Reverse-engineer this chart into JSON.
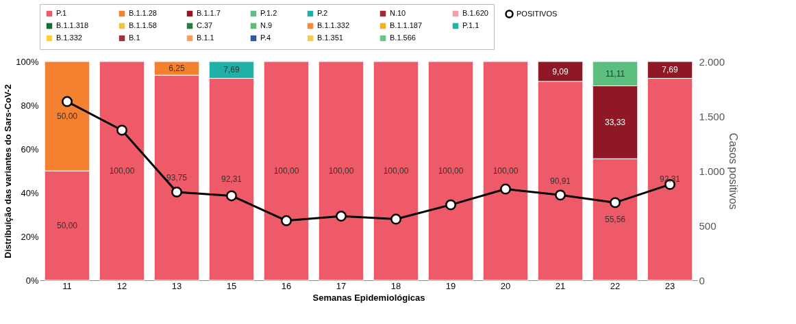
{
  "chart_data": {
    "type": "bar",
    "stacked": true,
    "xlabel": "Semanas Epidemiológicas",
    "ylabel": "Distribuição das variantes do Sars-CoV-2",
    "y2label": "Casos positivos",
    "categories": [
      "11",
      "12",
      "13",
      "15",
      "16",
      "17",
      "18",
      "19",
      "20",
      "21",
      "22",
      "23"
    ],
    "ylim": [
      0,
      100
    ],
    "yticks": [
      {
        "value": 0,
        "label": "0%"
      },
      {
        "value": 20,
        "label": "20%"
      },
      {
        "value": 40,
        "label": "40%"
      },
      {
        "value": 60,
        "label": "60%"
      },
      {
        "value": 80,
        "label": "80%"
      },
      {
        "value": 100,
        "label": "100%"
      }
    ],
    "y2lim": [
      0,
      2000
    ],
    "y2ticks": [
      0,
      500,
      {
        "value": 1000,
        "label": "1.000"
      },
      {
        "value": 1500,
        "label": "1.500"
      },
      {
        "value": 2000,
        "label": "2.000"
      }
    ],
    "grid": false,
    "legend": "top",
    "marker": "circle",
    "line_style": "solid",
    "series": [
      {
        "name": "P.1",
        "color": "#ef5a68",
        "values": [
          50,
          100,
          93.75,
          92.31,
          100,
          100,
          100,
          100,
          100,
          90.91,
          55.56,
          92.31
        ],
        "value_labels": [
          "50,00",
          "100,00",
          "93,75",
          "92,31",
          "100,00",
          "100,00",
          "100,00",
          "100,00",
          "100,00",
          "90,91",
          "55,56",
          "92,31"
        ]
      },
      {
        "name": "B.1.1.28",
        "color": "#f4812f",
        "values": [
          50,
          null,
          6.25,
          null,
          null,
          null,
          null,
          null,
          null,
          null,
          null,
          null
        ],
        "value_labels": [
          "50,00",
          null,
          "6,25",
          null,
          null,
          null,
          null,
          null,
          null,
          null,
          null,
          null
        ]
      },
      {
        "name": "B.1.1.7",
        "color": "#8f1826",
        "values": [
          null,
          null,
          null,
          null,
          null,
          null,
          null,
          null,
          null,
          9.09,
          33.33,
          7.69
        ],
        "value_labels": [
          null,
          null,
          null,
          null,
          null,
          null,
          null,
          null,
          null,
          "9,09",
          "33,33",
          "7,69"
        ]
      },
      {
        "name": "P.1.2",
        "color": "#5dbf7f",
        "values": [
          null,
          null,
          null,
          null,
          null,
          null,
          null,
          null,
          null,
          null,
          11.11,
          null
        ],
        "value_labels": [
          null,
          null,
          null,
          null,
          null,
          null,
          null,
          null,
          null,
          null,
          "11,11",
          null
        ]
      },
      {
        "name": "P.2",
        "color": "#20b0a8",
        "values": [
          null,
          null,
          null,
          7.69,
          null,
          null,
          null,
          null,
          null,
          null,
          null,
          null
        ],
        "value_labels": [
          null,
          null,
          null,
          "7,69",
          null,
          null,
          null,
          null,
          null,
          null,
          null,
          null
        ]
      },
      {
        "name": "N.10",
        "color": "#a02838",
        "values": [
          null,
          null,
          null,
          null,
          null,
          null,
          null,
          null,
          null,
          null,
          null,
          null
        ]
      },
      {
        "name": "B.1.620",
        "color": "#f2a0a8",
        "values": [
          null,
          null,
          null,
          null,
          null,
          null,
          null,
          null,
          null,
          null,
          null,
          null
        ]
      },
      {
        "name": "B.1.1.318",
        "color": "#1a6e3a",
        "values": [
          null,
          null,
          null,
          null,
          null,
          null,
          null,
          null,
          null,
          null,
          null,
          null
        ]
      },
      {
        "name": "B.1.1.58",
        "color": "#f5c048",
        "values": [
          null,
          null,
          null,
          null,
          null,
          null,
          null,
          null,
          null,
          null,
          null,
          null
        ]
      },
      {
        "name": "C.37",
        "color": "#2a7a48",
        "values": [
          null,
          null,
          null,
          null,
          null,
          null,
          null,
          null,
          null,
          null,
          null,
          null
        ]
      },
      {
        "name": "N.9",
        "color": "#5dbb75",
        "values": [
          null,
          null,
          null,
          null,
          null,
          null,
          null,
          null,
          null,
          null,
          null,
          null
        ]
      },
      {
        "name": "B.1.1.332",
        "color": "#f58a3c",
        "values": [
          null,
          null,
          null,
          null,
          null,
          null,
          null,
          null,
          null,
          null,
          null,
          null
        ]
      },
      {
        "name": "B.1.1.187",
        "color": "#f5b021",
        "values": [
          null,
          null,
          null,
          null,
          null,
          null,
          null,
          null,
          null,
          null,
          null,
          null
        ]
      },
      {
        "name": "P.1.1",
        "color": "#1db5a8",
        "values": [
          null,
          null,
          null,
          null,
          null,
          null,
          null,
          null,
          null,
          null,
          null,
          null
        ]
      },
      {
        "name": "B.1.332",
        "color": "#fdd231",
        "values": [
          null,
          null,
          null,
          null,
          null,
          null,
          null,
          null,
          null,
          null,
          null,
          null
        ]
      },
      {
        "name": "B.1",
        "color": "#a0303c",
        "values": [
          null,
          null,
          null,
          null,
          null,
          null,
          null,
          null,
          null,
          null,
          null,
          null
        ]
      },
      {
        "name": "B.1.1",
        "color": "#f4a060",
        "values": [
          null,
          null,
          null,
          null,
          null,
          null,
          null,
          null,
          null,
          null,
          null,
          null
        ]
      },
      {
        "name": "P.4",
        "color": "#2e55a0",
        "values": [
          null,
          null,
          null,
          null,
          null,
          null,
          null,
          null,
          null,
          null,
          null,
          null
        ]
      },
      {
        "name": "B.1.351",
        "color": "#f9c850",
        "values": [
          null,
          null,
          null,
          null,
          null,
          null,
          null,
          null,
          null,
          null,
          null,
          null
        ]
      },
      {
        "name": "B.1.566",
        "color": "#6dc48a",
        "values": [
          null,
          null,
          null,
          null,
          null,
          null,
          null,
          null,
          null,
          null,
          null,
          null
        ]
      },
      {
        "name": "POSITIVOS",
        "type": "line",
        "axis": "y2",
        "color": "#000000",
        "values": [
          1634,
          1372,
          807,
          772,
          545,
          586,
          559,
          690,
          834,
          779,
          710,
          876
        ]
      }
    ]
  }
}
